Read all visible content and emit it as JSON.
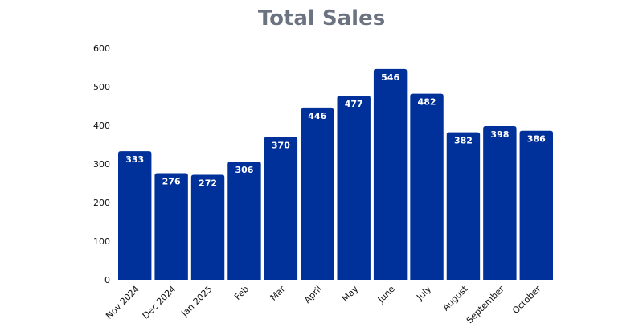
{
  "chart_data": {
    "type": "bar",
    "title": "Total Sales",
    "xlabel": "",
    "ylabel": "",
    "categories": [
      "Nov 2024",
      "Dec 2024",
      "Jan 2025",
      "Feb",
      "Mar",
      "April",
      "May",
      "June",
      "July",
      "August",
      "September",
      "October"
    ],
    "values": [
      333,
      276,
      272,
      306,
      370,
      446,
      477,
      546,
      482,
      382,
      398,
      386
    ],
    "ylim": [
      0,
      600
    ],
    "yticks": [
      0,
      100,
      200,
      300,
      400,
      500,
      600
    ],
    "grid": false,
    "legend": "none",
    "bar_color": "#00309a"
  }
}
